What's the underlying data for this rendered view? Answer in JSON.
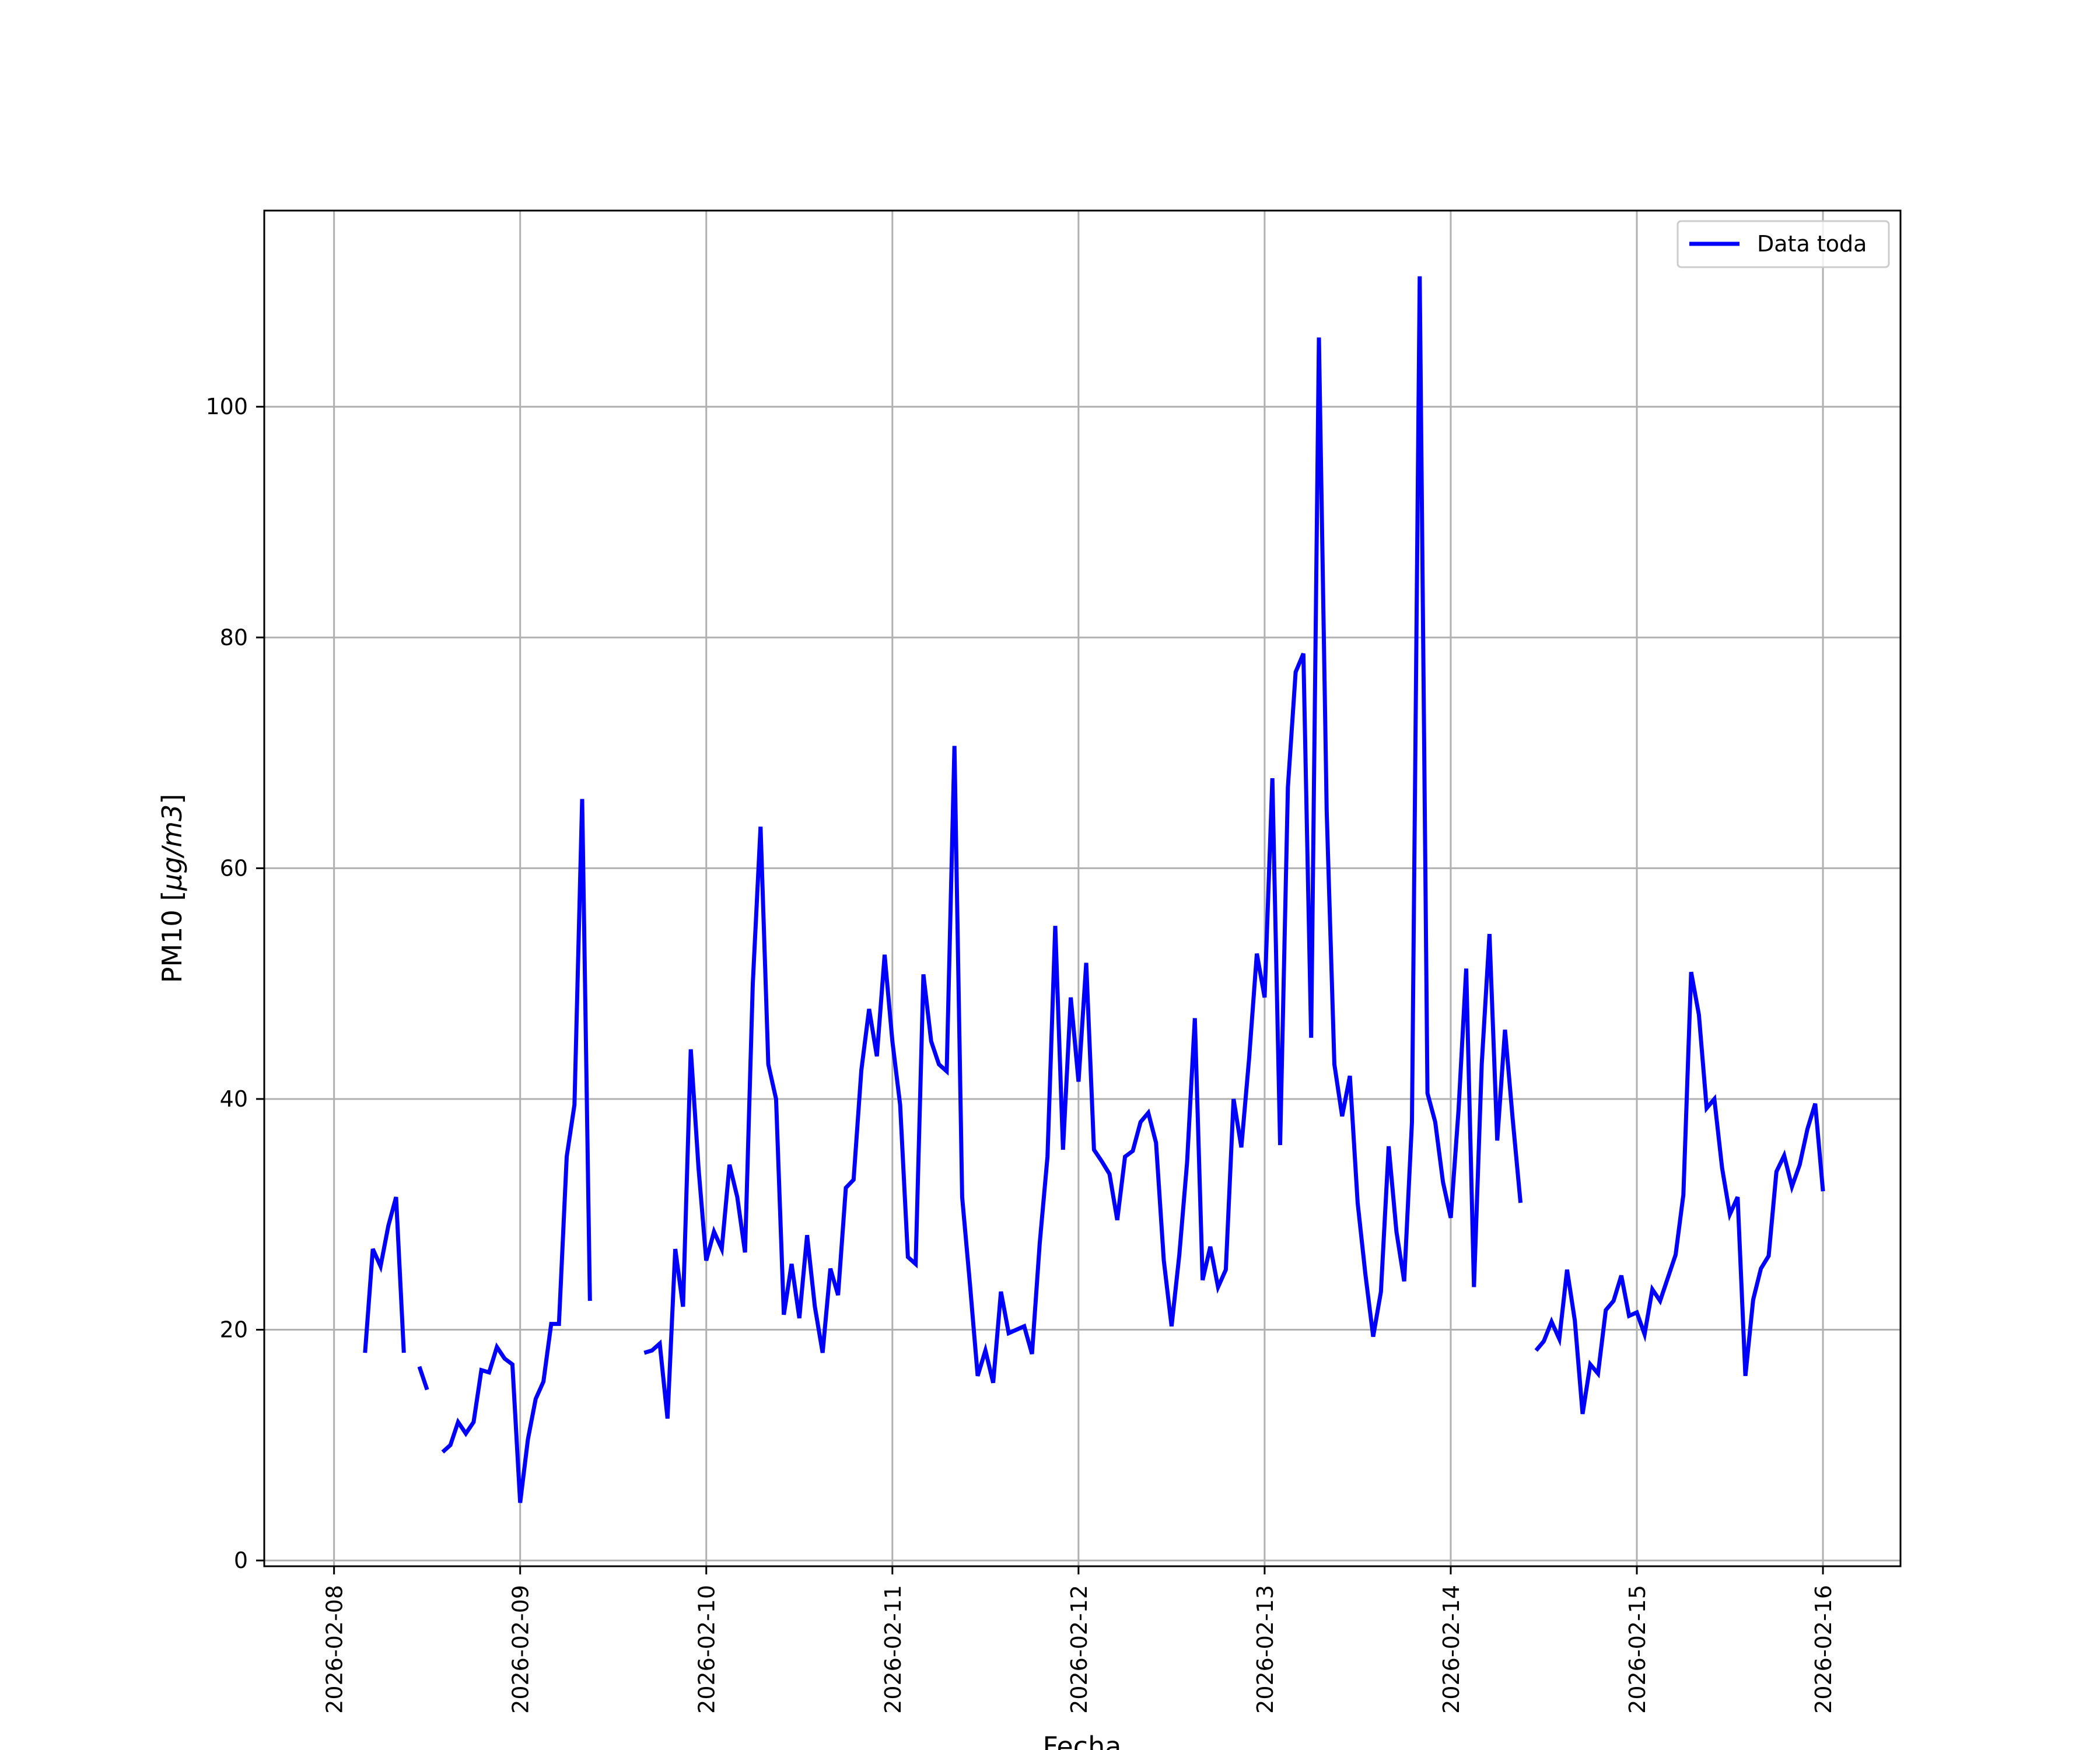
{
  "chart_data": {
    "type": "line",
    "title": "",
    "xlabel": "Fecha",
    "ylabel_main": "PM10 [",
    "ylabel_unit": "μg/m3",
    "ylabel_end": "]",
    "xlim": [
      "2026-02-07T15:00",
      "2026-02-16T10:00"
    ],
    "ylim": [
      -0.5,
      117
    ],
    "x_ticks": [
      "2026-02-08",
      "2026-02-09",
      "2026-02-10",
      "2026-02-11",
      "2026-02-12",
      "2026-02-13",
      "2026-02-14",
      "2026-02-15",
      "2026-02-16"
    ],
    "y_ticks": [
      0,
      20,
      40,
      60,
      80,
      100
    ],
    "grid": true,
    "legend_position": "top-right",
    "series": [
      {
        "name": "Data toda",
        "color": "#0000ff",
        "points": [
          [
            "2026-02-08T04:00",
            18.0
          ],
          [
            "2026-02-08T05:00",
            27.0
          ],
          [
            "2026-02-08T06:00",
            25.5
          ],
          [
            "2026-02-08T07:00",
            29.0
          ],
          [
            "2026-02-08T08:00",
            31.5
          ],
          [
            "2026-02-08T09:00",
            18.0
          ],
          [
            "2026-02-08T10:00",
            null
          ],
          [
            "2026-02-08T11:00",
            16.8
          ],
          [
            "2026-02-08T12:00",
            14.8
          ],
          [
            "2026-02-08T13:00",
            null
          ],
          [
            "2026-02-08T14:00",
            9.4
          ],
          [
            "2026-02-08T15:00",
            10.0
          ],
          [
            "2026-02-08T16:00",
            12.0
          ],
          [
            "2026-02-08T17:00",
            11.0
          ],
          [
            "2026-02-08T18:00",
            12.0
          ],
          [
            "2026-02-08T19:00",
            16.5
          ],
          [
            "2026-02-08T20:00",
            16.3
          ],
          [
            "2026-02-08T21:00",
            18.5
          ],
          [
            "2026-02-08T22:00",
            17.5
          ],
          [
            "2026-02-08T23:00",
            17.0
          ],
          [
            "2026-02-09T00:00",
            5.0
          ],
          [
            "2026-02-09T01:00",
            10.5
          ],
          [
            "2026-02-09T02:00",
            14.0
          ],
          [
            "2026-02-09T03:00",
            15.5
          ],
          [
            "2026-02-09T04:00",
            20.5
          ],
          [
            "2026-02-09T05:00",
            20.5
          ],
          [
            "2026-02-09T06:00",
            35.0
          ],
          [
            "2026-02-09T07:00",
            39.5
          ],
          [
            "2026-02-09T08:00",
            66.0
          ],
          [
            "2026-02-09T09:00",
            22.5
          ],
          [
            "2026-02-09T10:00",
            null
          ],
          [
            "2026-02-09T16:00",
            18.0
          ],
          [
            "2026-02-09T17:00",
            18.2
          ],
          [
            "2026-02-09T18:00",
            18.8
          ],
          [
            "2026-02-09T19:00",
            12.3
          ],
          [
            "2026-02-09T20:00",
            27.0
          ],
          [
            "2026-02-09T21:00",
            22.0
          ],
          [
            "2026-02-09T22:00",
            44.3
          ],
          [
            "2026-02-09T23:00",
            34.0
          ],
          [
            "2026-02-10T00:00",
            26.0
          ],
          [
            "2026-02-10T01:00",
            28.5
          ],
          [
            "2026-02-10T02:00",
            27.0
          ],
          [
            "2026-02-10T03:00",
            34.3
          ],
          [
            "2026-02-10T04:00",
            31.5
          ],
          [
            "2026-02-10T05:00",
            26.7
          ],
          [
            "2026-02-10T06:00",
            50.0
          ],
          [
            "2026-02-10T07:00",
            63.6
          ],
          [
            "2026-02-10T08:00",
            43.0
          ],
          [
            "2026-02-10T09:00",
            40.0
          ],
          [
            "2026-02-10T10:00",
            21.3
          ],
          [
            "2026-02-10T11:00",
            25.7
          ],
          [
            "2026-02-10T12:00",
            21.0
          ],
          [
            "2026-02-10T13:00",
            28.2
          ],
          [
            "2026-02-10T14:00",
            22.0
          ],
          [
            "2026-02-10T15:00",
            18.0
          ],
          [
            "2026-02-10T16:00",
            25.3
          ],
          [
            "2026-02-10T17:00",
            23.0
          ],
          [
            "2026-02-10T18:00",
            32.3
          ],
          [
            "2026-02-10T19:00",
            33.0
          ],
          [
            "2026-02-10T20:00",
            42.5
          ],
          [
            "2026-02-10T21:00",
            47.8
          ],
          [
            "2026-02-10T22:00",
            43.7
          ],
          [
            "2026-02-10T23:00",
            52.5
          ],
          [
            "2026-02-11T00:00",
            45.0
          ],
          [
            "2026-02-11T01:00",
            39.5
          ],
          [
            "2026-02-11T02:00",
            26.3
          ],
          [
            "2026-02-11T03:00",
            25.7
          ],
          [
            "2026-02-11T04:00",
            50.8
          ],
          [
            "2026-02-11T05:00",
            45.0
          ],
          [
            "2026-02-11T06:00",
            43.0
          ],
          [
            "2026-02-11T07:00",
            42.4
          ],
          [
            "2026-02-11T08:00",
            70.6
          ],
          [
            "2026-02-11T09:00",
            31.5
          ],
          [
            "2026-02-11T10:00",
            24.0
          ],
          [
            "2026-02-11T11:00",
            16.0
          ],
          [
            "2026-02-11T12:00",
            18.2
          ],
          [
            "2026-02-11T13:00",
            15.4
          ],
          [
            "2026-02-11T14:00",
            23.3
          ],
          [
            "2026-02-11T15:00",
            19.7
          ],
          [
            "2026-02-11T16:00",
            20.0
          ],
          [
            "2026-02-11T17:00",
            20.3
          ],
          [
            "2026-02-11T18:00",
            17.9
          ],
          [
            "2026-02-11T19:00",
            27.5
          ],
          [
            "2026-02-11T20:00",
            35.0
          ],
          [
            "2026-02-11T21:00",
            55.0
          ],
          [
            "2026-02-11T22:00",
            35.6
          ],
          [
            "2026-02-11T23:00",
            48.8
          ],
          [
            "2026-02-12T00:00",
            41.5
          ],
          [
            "2026-02-12T01:00",
            51.8
          ],
          [
            "2026-02-12T02:00",
            35.6
          ],
          [
            "2026-02-12T03:00",
            34.6
          ],
          [
            "2026-02-12T04:00",
            33.5
          ],
          [
            "2026-02-12T05:00",
            29.5
          ],
          [
            "2026-02-12T06:00",
            35.0
          ],
          [
            "2026-02-12T07:00",
            35.5
          ],
          [
            "2026-02-12T08:00",
            38.0
          ],
          [
            "2026-02-12T09:00",
            38.8
          ],
          [
            "2026-02-12T10:00",
            36.2
          ],
          [
            "2026-02-12T11:00",
            26.0
          ],
          [
            "2026-02-12T12:00",
            20.3
          ],
          [
            "2026-02-12T13:00",
            26.5
          ],
          [
            "2026-02-12T14:00",
            34.5
          ],
          [
            "2026-02-12T15:00",
            47.0
          ],
          [
            "2026-02-12T16:00",
            24.3
          ],
          [
            "2026-02-12T17:00",
            27.2
          ],
          [
            "2026-02-12T18:00",
            23.7
          ],
          [
            "2026-02-12T19:00",
            25.2
          ],
          [
            "2026-02-12T20:00",
            40.0
          ],
          [
            "2026-02-12T21:00",
            35.8
          ],
          [
            "2026-02-12T22:00",
            43.5
          ],
          [
            "2026-02-12T23:00",
            52.6
          ],
          [
            "2026-02-13T00:00",
            48.8
          ],
          [
            "2026-02-13T01:00",
            67.8
          ],
          [
            "2026-02-13T02:00",
            36.0
          ],
          [
            "2026-02-13T03:00",
            67.0
          ],
          [
            "2026-02-13T04:00",
            77.0
          ],
          [
            "2026-02-13T05:00",
            78.6
          ],
          [
            "2026-02-13T06:00",
            45.3
          ],
          [
            "2026-02-13T07:00",
            106.0
          ],
          [
            "2026-02-13T08:00",
            65.0
          ],
          [
            "2026-02-13T09:00",
            43.0
          ],
          [
            "2026-02-13T10:00",
            38.5
          ],
          [
            "2026-02-13T11:00",
            42.0
          ],
          [
            "2026-02-13T12:00",
            31.0
          ],
          [
            "2026-02-13T13:00",
            24.8
          ],
          [
            "2026-02-13T14:00",
            19.4
          ],
          [
            "2026-02-13T15:00",
            23.3
          ],
          [
            "2026-02-13T16:00",
            35.9
          ],
          [
            "2026-02-13T17:00",
            28.5
          ],
          [
            "2026-02-13T18:00",
            24.2
          ],
          [
            "2026-02-13T19:00",
            38.0
          ],
          [
            "2026-02-13T20:00",
            111.3
          ],
          [
            "2026-02-13T21:00",
            40.5
          ],
          [
            "2026-02-13T22:00",
            38.0
          ],
          [
            "2026-02-13T23:00",
            32.8
          ],
          [
            "2026-02-14T00:00",
            29.7
          ],
          [
            "2026-02-14T01:00",
            39.0
          ],
          [
            "2026-02-14T02:00",
            51.3
          ],
          [
            "2026-02-14T03:00",
            23.7
          ],
          [
            "2026-02-14T04:00",
            43.0
          ],
          [
            "2026-02-14T05:00",
            54.3
          ],
          [
            "2026-02-14T06:00",
            36.4
          ],
          [
            "2026-02-14T07:00",
            46.0
          ],
          [
            "2026-02-14T08:00",
            38.2
          ],
          [
            "2026-02-14T09:00",
            31.0
          ],
          [
            "2026-02-14T10:00",
            null
          ],
          [
            "2026-02-14T11:00",
            18.2
          ],
          [
            "2026-02-14T12:00",
            19.0
          ],
          [
            "2026-02-14T13:00",
            20.7
          ],
          [
            "2026-02-14T14:00",
            19.2
          ],
          [
            "2026-02-14T15:00",
            25.2
          ],
          [
            "2026-02-14T16:00",
            20.8
          ],
          [
            "2026-02-14T17:00",
            12.7
          ],
          [
            "2026-02-14T18:00",
            17.0
          ],
          [
            "2026-02-14T19:00",
            16.2
          ],
          [
            "2026-02-14T20:00",
            21.7
          ],
          [
            "2026-02-14T21:00",
            22.5
          ],
          [
            "2026-02-14T22:00",
            24.7
          ],
          [
            "2026-02-14T23:00",
            21.2
          ],
          [
            "2026-02-15T00:00",
            21.5
          ],
          [
            "2026-02-15T01:00",
            19.6
          ],
          [
            "2026-02-15T02:00",
            23.5
          ],
          [
            "2026-02-15T03:00",
            22.5
          ],
          [
            "2026-02-15T04:00",
            24.5
          ],
          [
            "2026-02-15T05:00",
            26.5
          ],
          [
            "2026-02-15T06:00",
            31.7
          ],
          [
            "2026-02-15T07:00",
            51.0
          ],
          [
            "2026-02-15T08:00",
            47.3
          ],
          [
            "2026-02-15T09:00",
            39.2
          ],
          [
            "2026-02-15T10:00",
            40.0
          ],
          [
            "2026-02-15T11:00",
            34.0
          ],
          [
            "2026-02-15T12:00",
            30.0
          ],
          [
            "2026-02-15T13:00",
            31.5
          ],
          [
            "2026-02-15T14:00",
            16.0
          ],
          [
            "2026-02-15T15:00",
            22.6
          ],
          [
            "2026-02-15T16:00",
            25.3
          ],
          [
            "2026-02-15T17:00",
            26.4
          ],
          [
            "2026-02-15T18:00",
            33.7
          ],
          [
            "2026-02-15T19:00",
            35.1
          ],
          [
            "2026-02-15T20:00",
            32.4
          ],
          [
            "2026-02-15T21:00",
            34.3
          ],
          [
            "2026-02-15T22:00",
            37.4
          ],
          [
            "2026-02-15T23:00",
            39.6
          ],
          [
            "2026-02-16T00:00",
            32.0
          ]
        ]
      }
    ]
  }
}
